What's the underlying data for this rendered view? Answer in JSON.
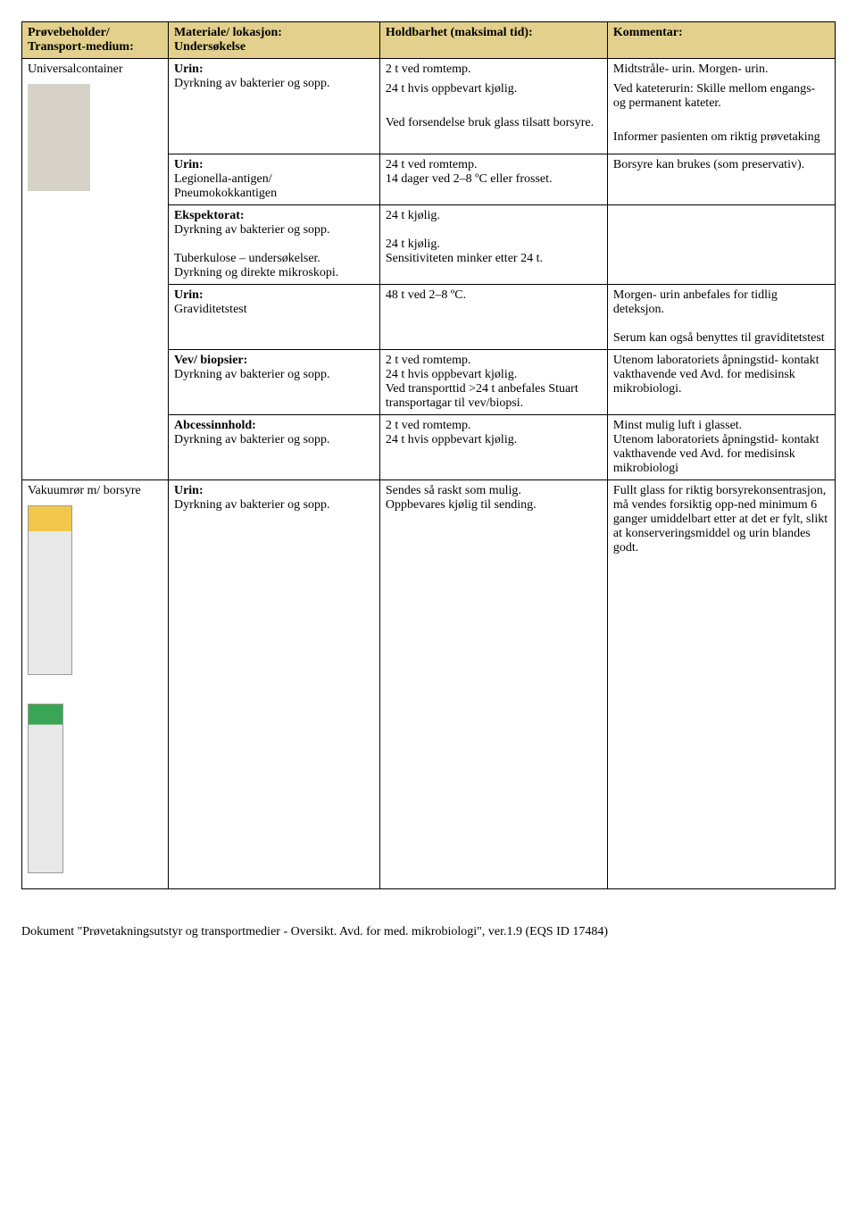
{
  "header": {
    "col1a": "Prøvebeholder/",
    "col1b": "Transport-medium:",
    "col2a": "Materiale/ lokasjon:",
    "col2b": "Undersøkelse",
    "col3": "Holdbarhet (maksimal tid):",
    "col4": "Kommentar:"
  },
  "r1": {
    "container": "Universalcontainer",
    "mat_bold": "Urin:",
    "mat_line": "Dyrkning av bakterier og sopp.",
    "hold1": "2 t ved romtemp.",
    "hold2": "24 t hvis oppbevart kjølig.",
    "hold3": "Ved forsendelse bruk glass tilsatt borsyre.",
    "kom1": "Midtstråle- urin. Morgen- urin.",
    "kom2": "Ved kateterurin: Skille mellom engangs- og permanent kateter.",
    "kom3": "Informer pasienten om riktig prøvetaking"
  },
  "r2": {
    "mat_bold": "Urin:",
    "mat1": "Legionella-antigen/",
    "mat2": "Pneumokokkantigen",
    "hold1": "24 t ved romtemp.",
    "hold2": "14 dager ved 2–8 ºC eller frosset.",
    "kom1": "Borsyre kan brukes (som preservativ)."
  },
  "r3": {
    "mat_bold": "Ekspektorat:",
    "mat1": "Dyrkning av bakterier og sopp.",
    "mat2": "Tuberkulose – undersøkelser.",
    "mat3": "Dyrkning og direkte mikroskopi.",
    "hold1": "24 t kjølig.",
    "hold2": "24 t kjølig.",
    "hold3": "Sensitiviteten minker etter 24 t."
  },
  "r4": {
    "mat_bold": "Urin:",
    "mat1": "Graviditetstest",
    "hold1": "48 t ved 2–8 ºC.",
    "kom1": "Morgen- urin anbefales for tidlig deteksjon.",
    "kom2": "Serum kan også benyttes til graviditetstest"
  },
  "r5": {
    "mat_bold": "Vev/ biopsier:",
    "mat1": "Dyrkning av bakterier og sopp.",
    "hold1": "2 t ved romtemp.",
    "hold2": "24 t hvis oppbevart kjølig.",
    "hold3": "Ved transporttid >24 t anbefales Stuart transportagar til vev/biopsi.",
    "kom1": "Utenom laboratoriets åpningstid- kontakt vakthavende ved Avd. for medisinsk mikrobiologi."
  },
  "r6": {
    "mat_bold": "Abcessinnhold:",
    "mat1": "Dyrkning av bakterier og sopp.",
    "hold1": "2 t ved romtemp.",
    "hold2": "24 t hvis oppbevart kjølig.",
    "kom1": "Minst mulig luft i glasset.",
    "kom2": "Utenom laboratoriets åpningstid- kontakt vakthavende ved Avd. for medisinsk mikrobiologi"
  },
  "r7": {
    "container": "Vakuumrør m/ borsyre",
    "mat_bold": "Urin:",
    "mat1": "Dyrkning av bakterier og sopp.",
    "hold1": "Sendes så raskt som mulig.",
    "hold2": "Oppbevares kjølig til sending.",
    "kom1": "Fullt glass for riktig borsyrekonsentrasjon, må vendes forsiktig opp-ned minimum 6 ganger umiddelbart etter at det er fylt, slikt at konserveringsmiddel og urin blandes godt."
  },
  "footer": "Dokument \"Prøvetakningsutstyr og transportmedier - Oversikt. Avd. for med. mikrobiologi\", ver.1.9 (EQS ID 17484)"
}
